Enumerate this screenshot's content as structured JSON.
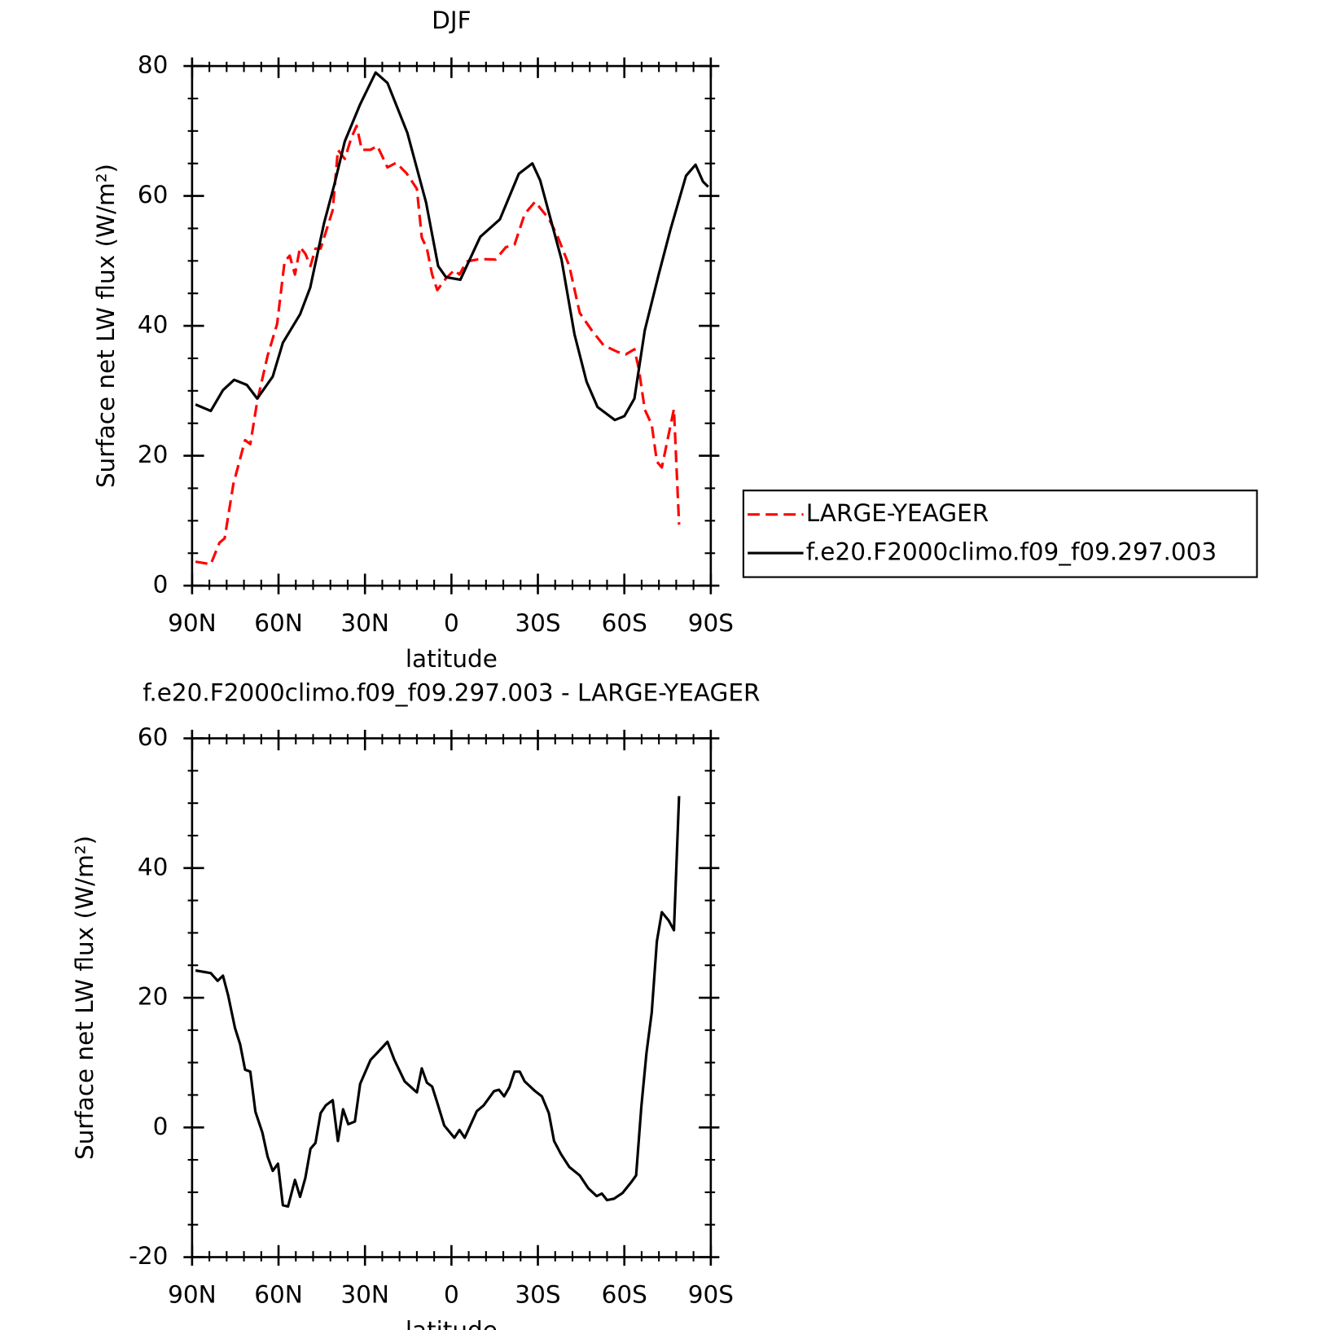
{
  "chart_data": [
    {
      "type": "line",
      "title": "DJF",
      "x_label": "latitude",
      "y_label": "Surface net LW flux (W/m²)",
      "xlim": [
        90,
        -90
      ],
      "xticks": [
        {
          "value": 90,
          "label": "90N"
        },
        {
          "value": 60,
          "label": "60N"
        },
        {
          "value": 30,
          "label": "30N"
        },
        0,
        {
          "value": -30,
          "label": "30S"
        },
        {
          "value": -60,
          "label": "60S"
        },
        {
          "value": -90,
          "label": "90S"
        }
      ],
      "ylim": [
        0,
        80
      ],
      "yticks": [
        0,
        20,
        40,
        60,
        80
      ],
      "legend": "outside-right",
      "series": [
        {
          "name": "LARGE-YEAGER",
          "color": "#ff0000",
          "dashed": true,
          "x": [
            88.8,
            83.5,
            80.5,
            78.7,
            75.7,
            71.6,
            69.8,
            67.4,
            63.8,
            60.5,
            57.9,
            56.1,
            54.3,
            52.5,
            50.7,
            48.9,
            47.2,
            45.4,
            41.2,
            39.4,
            37,
            34.7,
            32.9,
            31.1,
            28.1,
            25.7,
            22.2,
            19.2,
            15.6,
            12,
            10.3,
            8.5,
            6.7,
            4.9,
            1.9,
            -1,
            -2.8,
            -5.2,
            -10,
            -15.3,
            -18.9,
            -21.9,
            -25.4,
            -29,
            -33.8,
            -36.7,
            -40.9,
            -44.5,
            -48.7,
            -52.8,
            -57.6,
            -60.5,
            -63.5,
            -65,
            -67.1,
            -69.5,
            -71.3,
            -73,
            -77.2,
            -79
          ],
          "values": [
            3.7,
            3.3,
            6.6,
            7.3,
            15.6,
            22.4,
            21.8,
            28.4,
            35.4,
            40.3,
            49.9,
            50.8,
            47.9,
            52.1,
            51.1,
            49.2,
            51.9,
            51.9,
            57.8,
            67.1,
            65.7,
            69,
            70.8,
            67.1,
            67.1,
            67.7,
            64.4,
            65.1,
            63.5,
            61.1,
            53.6,
            51.9,
            47.9,
            45.5,
            47.3,
            48.6,
            47.9,
            49.9,
            50.3,
            50.2,
            52.1,
            52.5,
            57.2,
            59.1,
            56.5,
            53.9,
            49.2,
            42,
            39.3,
            37,
            36,
            35.6,
            36.4,
            33.4,
            27.1,
            24.8,
            19.1,
            18.2,
            27.2,
            9.4
          ]
        },
        {
          "name": "f.e20.F2000climo.f09_f09.297.003",
          "color": "#000000",
          "dashed": false,
          "x": [
            88.8,
            83.5,
            79.3,
            75.4,
            71,
            67.4,
            62,
            58.5,
            52.5,
            49,
            44.2,
            40.6,
            37,
            31.7,
            26.3,
            22.2,
            15.3,
            8.8,
            4.6,
            1.9,
            -3.1,
            -10,
            -16.8,
            -23.4,
            -28.1,
            -30.8,
            -38.2,
            -42.7,
            -46.9,
            -50.7,
            -56.7,
            -60,
            -63.5,
            -67.1,
            -71.9,
            -76,
            -81.4,
            -84.7,
            -87.3,
            -89.1
          ],
          "values": [
            27.9,
            26.9,
            30.1,
            31.7,
            30.9,
            28.8,
            32.2,
            37.4,
            41.8,
            45.9,
            55.8,
            61.8,
            68.4,
            74.1,
            79,
            77.4,
            69.7,
            59,
            49.2,
            47.5,
            47.1,
            53.7,
            56.4,
            63.4,
            65,
            62.4,
            50.2,
            38.7,
            31.4,
            27.5,
            25.5,
            26.1,
            28.8,
            39.3,
            47.9,
            54.8,
            63.1,
            64.8,
            62.2,
            61.4
          ]
        }
      ]
    },
    {
      "type": "line",
      "title": "f.e20.F2000climo.f09_f09.297.003 - LARGE-YEAGER",
      "x_label": "latitude",
      "y_label": "Surface net LW flux (W/m²)",
      "xlim": [
        90,
        -90
      ],
      "xticks": [
        {
          "value": 90,
          "label": "90N"
        },
        {
          "value": 60,
          "label": "60N"
        },
        {
          "value": 30,
          "label": "30N"
        },
        0,
        {
          "value": -30,
          "label": "30S"
        },
        {
          "value": -60,
          "label": "60S"
        },
        {
          "value": -90,
          "label": "90S"
        }
      ],
      "ylim": [
        -20,
        60
      ],
      "yticks": [
        -20,
        0,
        20,
        40,
        60
      ],
      "series": [
        {
          "color": "#000000",
          "dashed": false,
          "x": [
            88.8,
            83.5,
            81.1,
            79.3,
            77.5,
            75.1,
            73.3,
            71.6,
            69.8,
            68,
            65.6,
            63.8,
            62,
            60.2,
            58.5,
            56.7,
            54.3,
            52.5,
            50.7,
            48.9,
            47.2,
            45.4,
            43.6,
            41.2,
            39.4,
            37.6,
            35.8,
            33.5,
            31.7,
            28.1,
            25.1,
            22.2,
            19.8,
            16.2,
            12,
            10.3,
            8.5,
            6.7,
            4.9,
            2.5,
            -1,
            -2.8,
            -4.6,
            -8.8,
            -11.2,
            -14.8,
            -16.5,
            -18.3,
            -20.1,
            -21.9,
            -23.7,
            -25.4,
            -29,
            -31.4,
            -33.8,
            -35.6,
            -38,
            -40.9,
            -44.5,
            -47.5,
            -50.4,
            -52.2,
            -54,
            -56.4,
            -59.4,
            -62.3,
            -64.1,
            -65.9,
            -67.7,
            -69.5,
            -71.3,
            -73,
            -75.4,
            -77.2,
            -79
          ],
          "values": [
            24.2,
            23.8,
            22.6,
            23.4,
            20.4,
            15.3,
            12.8,
            8.9,
            8.6,
            2.4,
            -0.8,
            -4.5,
            -6.7,
            -5.6,
            -12,
            -12.2,
            -8.1,
            -10.7,
            -7.8,
            -3.3,
            -2.4,
            2.2,
            3.4,
            4.2,
            -2.1,
            2.8,
            0.5,
            0.9,
            6.7,
            10.4,
            11.8,
            13.2,
            10.4,
            7.1,
            5.4,
            9.1,
            6.9,
            6.3,
            3.8,
            0.3,
            -1.6,
            -0.4,
            -1.6,
            2.5,
            3.4,
            5.6,
            5.8,
            4.8,
            6.2,
            8.6,
            8.6,
            7.1,
            5.6,
            4.8,
            2.2,
            -2.1,
            -4.1,
            -6.1,
            -7.4,
            -9.4,
            -10.6,
            -10.2,
            -11.2,
            -11,
            -10.1,
            -8.5,
            -7.4,
            3.2,
            11.5,
            17.7,
            28.7,
            33.2,
            31.9,
            30.4,
            51.1
          ]
        }
      ]
    }
  ]
}
